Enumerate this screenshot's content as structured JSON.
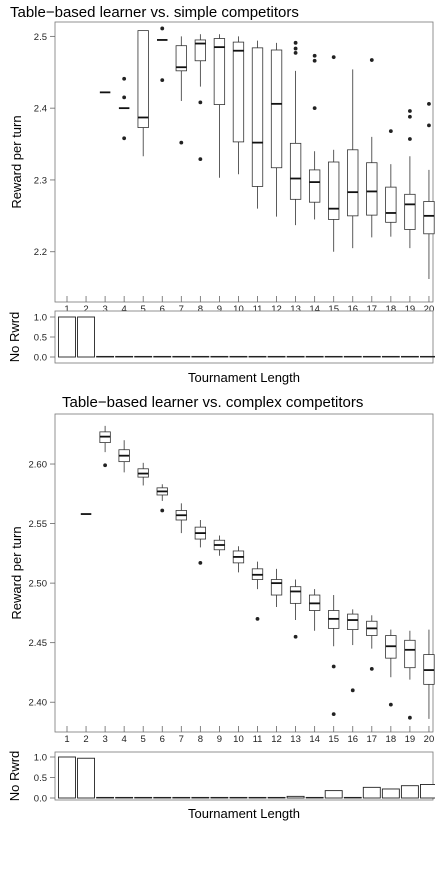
{
  "chart_data": [
    {
      "id": "simple",
      "type": "box",
      "title": "Table−based learner vs. simple competitors",
      "ylabel": "Reward per turn",
      "xlabel": "",
      "categories": [
        "1",
        "2",
        "3",
        "4",
        "5",
        "6",
        "7",
        "8",
        "9",
        "10",
        "11",
        "12",
        "13",
        "14",
        "15",
        "16",
        "17",
        "18",
        "19",
        "20"
      ],
      "ylim": [
        2.13,
        2.52
      ],
      "yticks": [
        "2.2",
        "2.3",
        "2.4",
        "2.5"
      ],
      "boxes": [
        null,
        null,
        {
          "q1": 2.422,
          "med": 2.422,
          "q3": 2.422,
          "lo": 2.422,
          "hi": 2.422,
          "out": []
        },
        {
          "q1": 2.4,
          "med": 2.4,
          "q3": 2.4,
          "lo": 2.4,
          "hi": 2.4,
          "out": [
            2.358,
            2.415,
            2.441
          ]
        },
        {
          "q1": 2.373,
          "med": 2.387,
          "q3": 2.508,
          "lo": 2.333,
          "hi": 2.508,
          "out": []
        },
        {
          "q1": 2.495,
          "med": 2.495,
          "q3": 2.495,
          "lo": 2.495,
          "hi": 2.495,
          "out": [
            2.439,
            2.511
          ]
        },
        {
          "q1": 2.452,
          "med": 2.457,
          "q3": 2.487,
          "lo": 2.41,
          "hi": 2.5,
          "out": [
            2.352
          ]
        },
        {
          "q1": 2.466,
          "med": 2.49,
          "q3": 2.495,
          "lo": 2.43,
          "hi": 2.503,
          "out": [
            2.408,
            2.329
          ]
        },
        {
          "q1": 2.405,
          "med": 2.485,
          "q3": 2.497,
          "lo": 2.303,
          "hi": 2.503,
          "out": []
        },
        {
          "q1": 2.353,
          "med": 2.48,
          "q3": 2.492,
          "lo": 2.308,
          "hi": 2.5,
          "out": []
        },
        {
          "q1": 2.291,
          "med": 2.352,
          "q3": 2.484,
          "lo": 2.26,
          "hi": 2.494,
          "out": []
        },
        {
          "q1": 2.317,
          "med": 2.406,
          "q3": 2.481,
          "lo": 2.249,
          "hi": 2.491,
          "out": []
        },
        {
          "q1": 2.273,
          "med": 2.302,
          "q3": 2.351,
          "lo": 2.237,
          "hi": 2.452,
          "out": [
            2.477,
            2.483,
            2.491
          ]
        },
        {
          "q1": 2.269,
          "med": 2.297,
          "q3": 2.314,
          "lo": 2.245,
          "hi": 2.34,
          "out": [
            2.4,
            2.466,
            2.473
          ]
        },
        {
          "q1": 2.245,
          "med": 2.26,
          "q3": 2.325,
          "lo": 2.2,
          "hi": 2.342,
          "out": [
            2.471
          ]
        },
        {
          "q1": 2.25,
          "med": 2.283,
          "q3": 2.342,
          "lo": 2.205,
          "hi": 2.454,
          "out": []
        },
        {
          "q1": 2.251,
          "med": 2.284,
          "q3": 2.324,
          "lo": 2.22,
          "hi": 2.36,
          "out": [
            2.467
          ]
        },
        {
          "q1": 2.241,
          "med": 2.254,
          "q3": 2.29,
          "lo": 2.221,
          "hi": 2.322,
          "out": [
            2.368
          ]
        },
        {
          "q1": 2.231,
          "med": 2.266,
          "q3": 2.28,
          "lo": 2.205,
          "hi": 2.333,
          "out": [
            2.357,
            2.388,
            2.396
          ]
        },
        {
          "q1": 2.225,
          "med": 2.25,
          "q3": 2.27,
          "lo": 2.162,
          "hi": 2.314,
          "out": [
            2.376,
            2.406
          ]
        }
      ]
    },
    {
      "id": "simple_norwrd",
      "type": "bar",
      "ylabel": "No Rwrd",
      "xlabel": "Tournament Length",
      "categories": [
        "1",
        "2",
        "3",
        "4",
        "5",
        "6",
        "7",
        "8",
        "9",
        "10",
        "11",
        "12",
        "13",
        "14",
        "15",
        "16",
        "17",
        "18",
        "19",
        "20"
      ],
      "ylim": [
        0,
        1.0
      ],
      "yticks": [
        "0.0",
        "0.5",
        "1.0"
      ],
      "values": [
        1.0,
        1.0,
        0,
        0,
        0,
        0,
        0,
        0,
        0,
        0,
        0,
        0,
        0,
        0,
        0,
        0,
        0,
        0,
        0,
        0
      ]
    },
    {
      "id": "complex",
      "type": "box",
      "title": "Table−based learner vs. complex competitors",
      "ylabel": "Reward per turn",
      "xlabel": "",
      "categories": [
        "1",
        "2",
        "3",
        "4",
        "5",
        "6",
        "7",
        "8",
        "9",
        "10",
        "11",
        "12",
        "13",
        "14",
        "15",
        "16",
        "17",
        "18",
        "19",
        "20"
      ],
      "ylim": [
        2.375,
        2.642
      ],
      "yticks": [
        "2.40",
        "2.45",
        "2.50",
        "2.55",
        "2.60"
      ],
      "boxes": [
        null,
        {
          "q1": 2.558,
          "med": 2.558,
          "q3": 2.558,
          "lo": 2.558,
          "hi": 2.558,
          "out": []
        },
        {
          "q1": 2.618,
          "med": 2.623,
          "q3": 2.627,
          "lo": 2.61,
          "hi": 2.632,
          "out": [
            2.599
          ]
        },
        {
          "q1": 2.602,
          "med": 2.607,
          "q3": 2.612,
          "lo": 2.593,
          "hi": 2.62,
          "out": []
        },
        {
          "q1": 2.589,
          "med": 2.592,
          "q3": 2.596,
          "lo": 2.582,
          "hi": 2.601,
          "out": []
        },
        {
          "q1": 2.574,
          "med": 2.577,
          "q3": 2.58,
          "lo": 2.569,
          "hi": 2.583,
          "out": [
            2.561
          ]
        },
        {
          "q1": 2.553,
          "med": 2.557,
          "q3": 2.561,
          "lo": 2.542,
          "hi": 2.567,
          "out": []
        },
        {
          "q1": 2.537,
          "med": 2.542,
          "q3": 2.547,
          "lo": 2.53,
          "hi": 2.553,
          "out": [
            2.517
          ]
        },
        {
          "q1": 2.528,
          "med": 2.532,
          "q3": 2.536,
          "lo": 2.523,
          "hi": 2.54,
          "out": []
        },
        {
          "q1": 2.517,
          "med": 2.522,
          "q3": 2.527,
          "lo": 2.509,
          "hi": 2.531,
          "out": []
        },
        {
          "q1": 2.503,
          "med": 2.507,
          "q3": 2.512,
          "lo": 2.495,
          "hi": 2.518,
          "out": [
            2.47
          ]
        },
        {
          "q1": 2.49,
          "med": 2.5,
          "q3": 2.503,
          "lo": 2.48,
          "hi": 2.512,
          "out": []
        },
        {
          "q1": 2.483,
          "med": 2.493,
          "q3": 2.497,
          "lo": 2.469,
          "hi": 2.503,
          "out": [
            2.455
          ]
        },
        {
          "q1": 2.477,
          "med": 2.483,
          "q3": 2.49,
          "lo": 2.46,
          "hi": 2.495,
          "out": []
        },
        {
          "q1": 2.462,
          "med": 2.47,
          "q3": 2.477,
          "lo": 2.447,
          "hi": 2.49,
          "out": [
            2.43,
            2.39
          ]
        },
        {
          "q1": 2.461,
          "med": 2.469,
          "q3": 2.474,
          "lo": 2.448,
          "hi": 2.478,
          "out": [
            2.41
          ]
        },
        {
          "q1": 2.456,
          "med": 2.462,
          "q3": 2.468,
          "lo": 2.445,
          "hi": 2.473,
          "out": [
            2.428
          ]
        },
        {
          "q1": 2.437,
          "med": 2.447,
          "q3": 2.456,
          "lo": 2.421,
          "hi": 2.461,
          "out": [
            2.398
          ]
        },
        {
          "q1": 2.429,
          "med": 2.444,
          "q3": 2.452,
          "lo": 2.419,
          "hi": 2.46,
          "out": [
            2.387
          ]
        },
        {
          "q1": 2.415,
          "med": 2.427,
          "q3": 2.44,
          "lo": 2.386,
          "hi": 2.461,
          "out": []
        }
      ]
    },
    {
      "id": "complex_norwrd",
      "type": "bar",
      "ylabel": "No Rwrd",
      "xlabel": "Tournament Length",
      "categories": [
        "1",
        "2",
        "3",
        "4",
        "5",
        "6",
        "7",
        "8",
        "9",
        "10",
        "11",
        "12",
        "13",
        "14",
        "15",
        "16",
        "17",
        "18",
        "19",
        "20"
      ],
      "ylim": [
        0,
        1.0
      ],
      "yticks": [
        "0.0",
        "0.5",
        "1.0"
      ],
      "values": [
        1.0,
        0.97,
        0,
        0,
        0,
        0,
        0,
        0,
        0,
        0,
        0,
        0,
        0.04,
        0,
        0.18,
        0,
        0.26,
        0.22,
        0.3,
        0.33
      ]
    }
  ]
}
